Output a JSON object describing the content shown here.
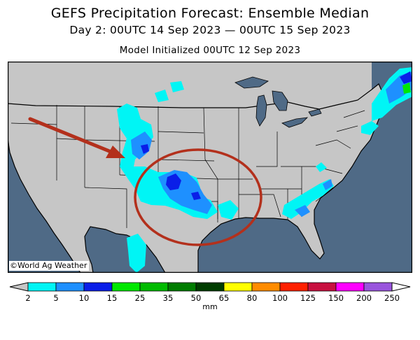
{
  "header": {
    "title": "GEFS Precipitation Forecast: Ensemble Median",
    "period": "Day 2: 00UTC 14 Sep 2023 — 00UTC 15 Sep 2023",
    "initialized": "Model Initialized 00UTC 12 Sep 2023"
  },
  "map": {
    "credit": "©World Ag Weather",
    "land_color": "#c6c6c6",
    "water_color": "#4f6a86",
    "annotation_color": "#b3301c"
  },
  "legend": {
    "unit": "mm",
    "ticks": [
      "2",
      "5",
      "10",
      "15",
      "25",
      "35",
      "50",
      "65",
      "80",
      "100",
      "125",
      "150",
      "200",
      "250"
    ],
    "colors": [
      "#00f5f5",
      "#1e90ff",
      "#0a1ee8",
      "#00e800",
      "#00bb00",
      "#007d00",
      "#003d00",
      "#ffff00",
      "#ff8c00",
      "#ff2000",
      "#c81040",
      "#ff00ff",
      "#9955dd"
    ]
  }
}
